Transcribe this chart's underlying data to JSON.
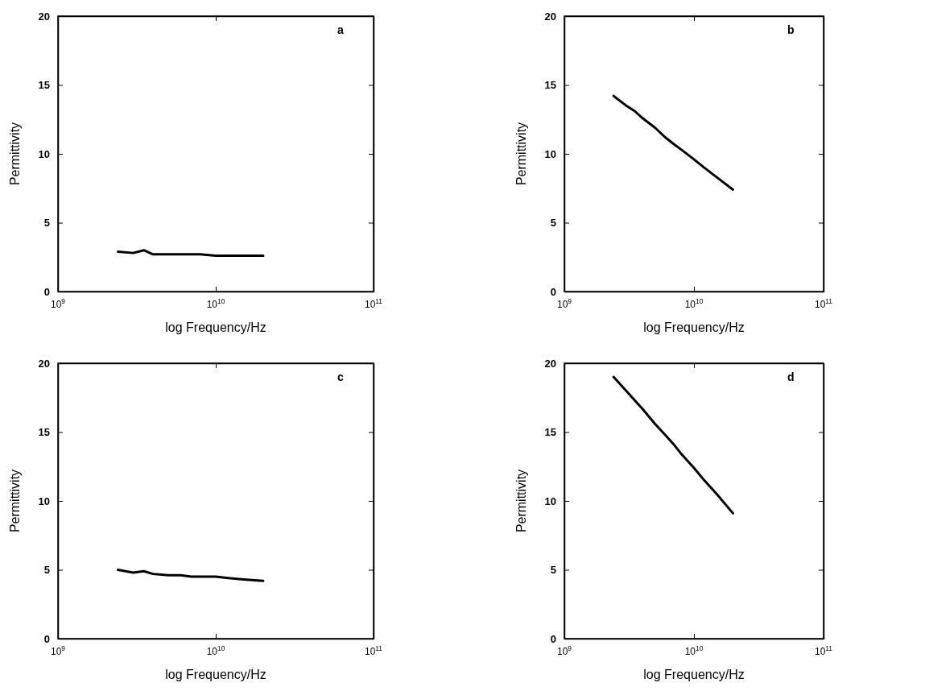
{
  "chart_data": [
    {
      "type": "line",
      "xlabel": "log Frequency/Hz",
      "ylabel": "Permittivity",
      "annotations": [
        "a"
      ],
      "log": "x",
      "xlim": [
        1000000000.0,
        100000000000.0
      ],
      "xticks": [
        {
          "value": 1000000000.0,
          "label": "10$^{9}$"
        },
        {
          "value": 10000000000.0,
          "label": "10$^{10}$"
        },
        {
          "value": 100000000000.0,
          "label": "10$^{11}$"
        }
      ],
      "ylim": [
        0,
        20
      ],
      "yticks": [
        0,
        5,
        10,
        15,
        20
      ],
      "grid": false,
      "marker": "none",
      "line_style": "solid",
      "series": [
        {
          "color": "#000000",
          "x": [
            2400000000.0,
            3000000000.0,
            3500000000.0,
            4000000000.0,
            5000000000.0,
            6000000000.0,
            7000000000.0,
            8000000000.0,
            10000000000.0,
            12000000000.0,
            15000000000.0,
            20000000000.0
          ],
          "values": [
            2.9,
            2.8,
            3.0,
            2.7,
            2.7,
            2.7,
            2.7,
            2.7,
            2.6,
            2.6,
            2.6,
            2.6
          ]
        }
      ]
    },
    {
      "type": "line",
      "xlabel": "log Frequency/Hz",
      "ylabel": "Permittivity",
      "annotations": [
        "b"
      ],
      "log": "x",
      "xlim": [
        1000000000.0,
        100000000000.0
      ],
      "xticks": [
        {
          "value": 1000000000.0,
          "label": "10$^{9}$"
        },
        {
          "value": 10000000000.0,
          "label": "10$^{10}$"
        },
        {
          "value": 100000000000.0,
          "label": "10$^{11}$"
        }
      ],
      "ylim": [
        0,
        20
      ],
      "yticks": [
        0,
        5,
        10,
        15,
        20
      ],
      "grid": false,
      "marker": "none",
      "line_style": "solid",
      "series": [
        {
          "color": "#000000",
          "x": [
            2400000000.0,
            3000000000.0,
            3500000000.0,
            4000000000.0,
            5000000000.0,
            6000000000.0,
            7000000000.0,
            8000000000.0,
            10000000000.0,
            12000000000.0,
            15000000000.0,
            20000000000.0
          ],
          "values": [
            14.2,
            13.5,
            13.1,
            12.6,
            11.9,
            11.2,
            10.7,
            10.3,
            9.6,
            9.0,
            8.3,
            7.4
          ]
        }
      ]
    },
    {
      "type": "line",
      "xlabel": "log Frequency/Hz",
      "ylabel": "Permittivity",
      "annotations": [
        "c"
      ],
      "log": "x",
      "xlim": [
        1000000000.0,
        100000000000.0
      ],
      "xticks": [
        {
          "value": 1000000000.0,
          "label": "10$^{9}$"
        },
        {
          "value": 10000000000.0,
          "label": "10$^{10}$"
        },
        {
          "value": 100000000000.0,
          "label": "10$^{11}$"
        }
      ],
      "ylim": [
        0,
        20
      ],
      "yticks": [
        0,
        5,
        10,
        15,
        20
      ],
      "grid": false,
      "marker": "none",
      "line_style": "solid",
      "series": [
        {
          "color": "#000000",
          "x": [
            2400000000.0,
            3000000000.0,
            3500000000.0,
            4000000000.0,
            5000000000.0,
            6000000000.0,
            7000000000.0,
            8000000000.0,
            10000000000.0,
            12000000000.0,
            15000000000.0,
            20000000000.0
          ],
          "values": [
            5.0,
            4.8,
            4.9,
            4.7,
            4.6,
            4.6,
            4.5,
            4.5,
            4.5,
            4.4,
            4.3,
            4.2
          ]
        }
      ]
    },
    {
      "type": "line",
      "xlabel": "log Frequency/Hz",
      "ylabel": "Permittivity",
      "annotations": [
        "d"
      ],
      "log": "x",
      "xlim": [
        1000000000.0,
        100000000000.0
      ],
      "xticks": [
        {
          "value": 1000000000.0,
          "label": "10$^{9}$"
        },
        {
          "value": 10000000000.0,
          "label": "10$^{10}$"
        },
        {
          "value": 100000000000.0,
          "label": "10$^{11}$"
        }
      ],
      "ylim": [
        0,
        20
      ],
      "yticks": [
        0,
        5,
        10,
        15,
        20
      ],
      "grid": false,
      "marker": "none",
      "line_style": "solid",
      "series": [
        {
          "color": "#000000",
          "x": [
            2400000000.0,
            3000000000.0,
            3500000000.0,
            4000000000.0,
            5000000000.0,
            6000000000.0,
            7000000000.0,
            8000000000.0,
            10000000000.0,
            12000000000.0,
            15000000000.0,
            20000000000.0
          ],
          "values": [
            19.0,
            18.0,
            17.3,
            16.7,
            15.6,
            14.8,
            14.1,
            13.4,
            12.4,
            11.5,
            10.5,
            9.1
          ]
        }
      ]
    }
  ]
}
